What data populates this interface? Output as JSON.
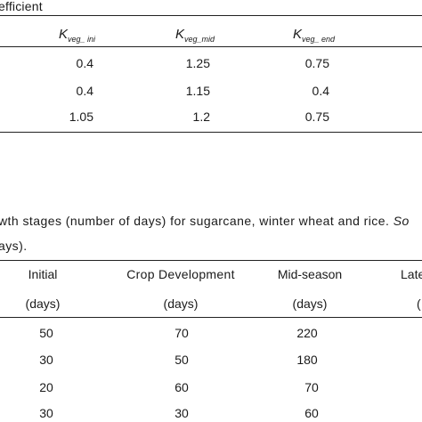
{
  "table1": {
    "title_fragment": "efficient",
    "headers": [
      {
        "base": "K",
        "sub": "veg_ ini"
      },
      {
        "base": "K",
        "sub": "veg_mid"
      },
      {
        "base": "K",
        "sub": "veg_ end"
      }
    ],
    "rows": [
      [
        "0.4",
        "1.25",
        "0.75"
      ],
      [
        "0.4",
        "1.15",
        "0.4"
      ],
      [
        "1.05",
        "1.2",
        "0.75"
      ]
    ]
  },
  "table2": {
    "caption_line1": "wth stages (number of days) for sugarcane, winter wheat and rice.",
    "caption_line1_tail": "So",
    "caption_line2": "ays).",
    "headers": [
      "Initial",
      "Crop Development",
      "Mid-season",
      "Late"
    ],
    "units": [
      "(days)",
      "(days)",
      "(days)",
      "("
    ],
    "rows": [
      [
        "50",
        "70",
        "220"
      ],
      [
        "30",
        "50",
        "180"
      ],
      [
        "20",
        "60",
        "70"
      ],
      [
        "30",
        "30",
        "60"
      ]
    ]
  }
}
